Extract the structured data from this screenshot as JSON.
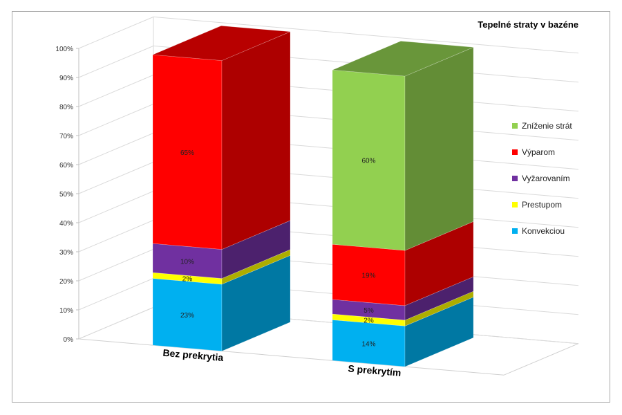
{
  "chart_data": {
    "type": "bar",
    "stacked": true,
    "title": "Tepelné straty v bazéne",
    "categories": [
      "Bez prekrytia",
      "S prekrytím"
    ],
    "ylim": [
      0,
      100
    ],
    "yticks": [
      "0%",
      "10%",
      "20%",
      "30%",
      "40%",
      "50%",
      "60%",
      "70%",
      "80%",
      "90%",
      "100%"
    ],
    "series": [
      {
        "name": "Konvekciou",
        "color": "#00B0F0",
        "values": [
          23,
          14
        ],
        "labels": [
          "23%",
          "14%"
        ]
      },
      {
        "name": "Prestupom",
        "color": "#FFFF00",
        "values": [
          2,
          2
        ],
        "labels": [
          "2%",
          "2%"
        ]
      },
      {
        "name": "Vyžarovaním",
        "color": "#7030A0",
        "values": [
          10,
          5
        ],
        "labels": [
          "10%",
          "5%"
        ]
      },
      {
        "name": "Výparom",
        "color": "#FF0000",
        "values": [
          65,
          19
        ],
        "labels": [
          "65%",
          "19%"
        ]
      },
      {
        "name": "Zníženie strát",
        "color": "#92D050",
        "values": [
          0,
          60
        ],
        "labels": [
          "",
          "60%"
        ]
      }
    ],
    "legend_position": "right",
    "grid": true
  }
}
